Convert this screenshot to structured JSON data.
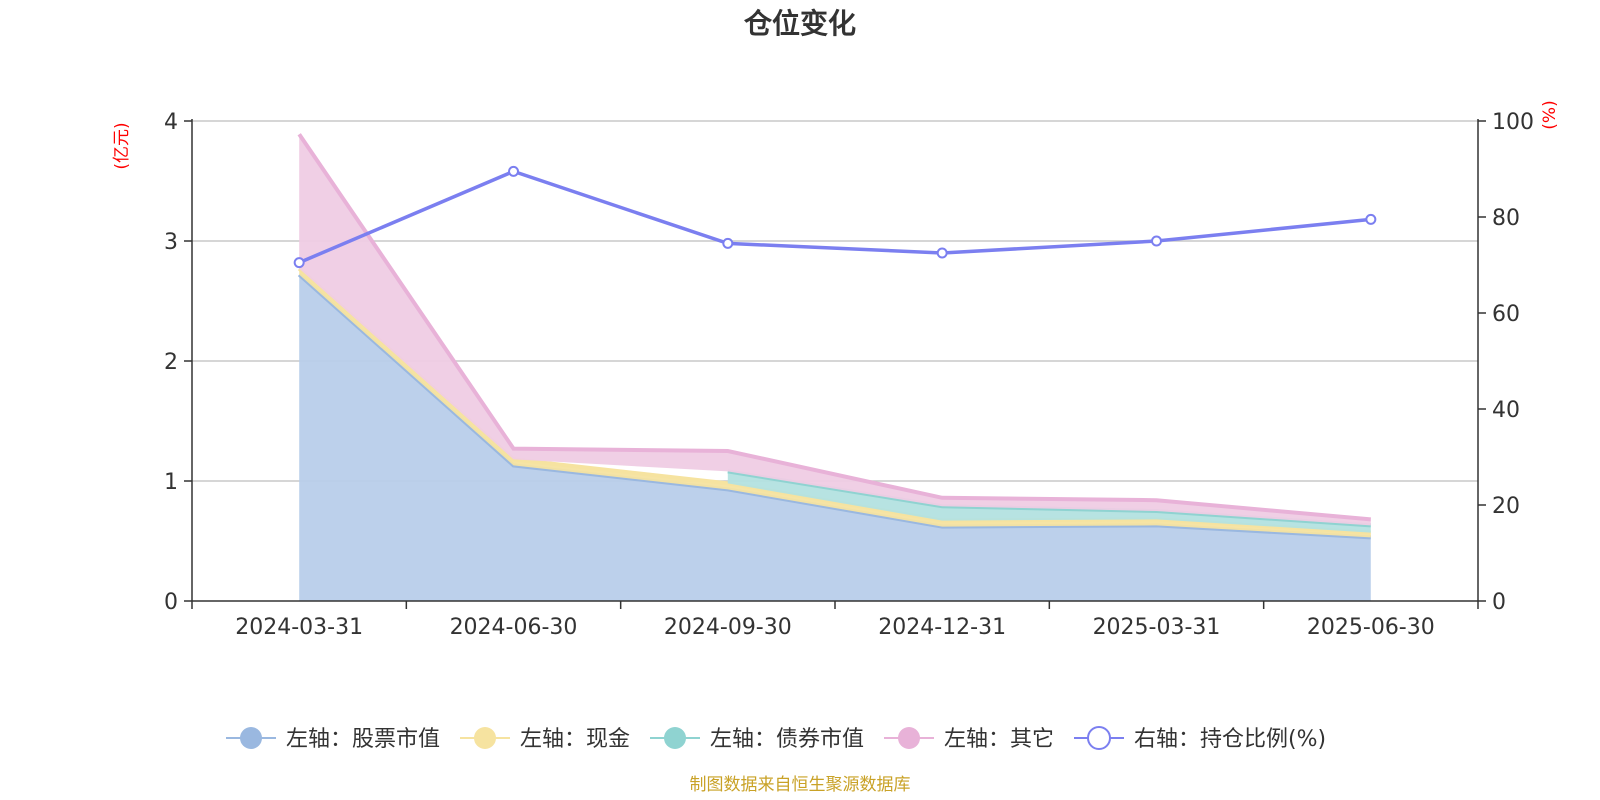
{
  "chart_data": {
    "type": "area",
    "title": "仓位变化",
    "categories": [
      "2024-03-31",
      "2024-06-30",
      "2024-09-30",
      "2024-12-31",
      "2025-03-31",
      "2025-06-30"
    ],
    "left_axis": {
      "unit": "(亿元)",
      "ylim": [
        0,
        4
      ],
      "ticks": [
        "0",
        "1",
        "2",
        "3",
        "4"
      ]
    },
    "right_axis": {
      "unit": "(%)",
      "ylim": [
        0,
        100
      ],
      "ticks": [
        "0",
        "20",
        "40",
        "60",
        "80",
        "100"
      ]
    },
    "stacked_series": [
      {
        "name": "左轴：股票市值",
        "axis": "left",
        "color": "#9ab8e0",
        "fill": "#b8cdea",
        "values": [
          2.72,
          1.13,
          0.93,
          0.62,
          0.63,
          0.53
        ]
      },
      {
        "name": "左轴：现金",
        "axis": "left",
        "color": "#f6e3a0",
        "fill": "#f6e3a0",
        "values": [
          0.05,
          0.05,
          0.05,
          0.05,
          0.05,
          0.04
        ]
      },
      {
        "name": "左轴：债券市值",
        "axis": "left",
        "color": "#8fd3d1",
        "fill": "#b3e2e0",
        "values": [
          null,
          null,
          0.1,
          0.12,
          0.07,
          0.06
        ]
      },
      {
        "name": "左轴：其它",
        "axis": "left",
        "color": "#e8b2d8",
        "fill": "#efcce4",
        "values": [
          1.12,
          0.09,
          0.17,
          0.07,
          0.09,
          0.05
        ]
      }
    ],
    "line_series": [
      {
        "name": "右轴：持仓比例(%)",
        "axis": "right",
        "color": "#7b7ff0",
        "values": [
          70.5,
          89.5,
          74.5,
          72.5,
          75,
          79.5
        ]
      }
    ],
    "grid": true,
    "legend_position": "bottom"
  },
  "footer": {
    "source": "制图数据来自恒生聚源数据库"
  }
}
